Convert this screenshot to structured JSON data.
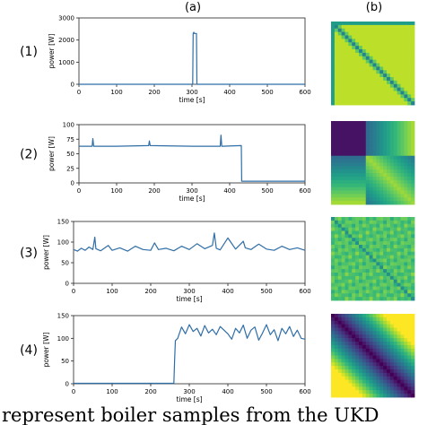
{
  "column_labels": [
    "(a)",
    "(b)"
  ],
  "caption": "represent boiler samples from the UKD",
  "colors": {
    "line": "#2f6ea6",
    "axis": "#222222"
  },
  "chart_data": [
    {
      "type": "line",
      "row_label": "(1)",
      "xlabel": "time [s]",
      "ylabel": "power [W]",
      "xlim": [
        0,
        600
      ],
      "ylim": [
        0,
        3000
      ],
      "xticks": [
        0,
        100,
        200,
        300,
        400,
        500,
        600
      ],
      "yticks": [
        0,
        1000,
        2000,
        3000
      ],
      "x": [
        0,
        298,
        299,
        302,
        303,
        305,
        306,
        312,
        313,
        314,
        600
      ],
      "y": [
        0,
        0,
        0,
        0,
        2300,
        2350,
        2300,
        2300,
        0,
        0,
        0
      ]
    },
    {
      "type": "line",
      "row_label": "(2)",
      "xlabel": "time [s]",
      "ylabel": "power [W]",
      "xlim": [
        0,
        600
      ],
      "ylim": [
        0,
        100
      ],
      "xticks": [
        0,
        100,
        200,
        300,
        400,
        500,
        600
      ],
      "yticks": [
        0,
        25,
        50,
        75,
        100
      ],
      "x": [
        0,
        35,
        37,
        39,
        100,
        185,
        187,
        189,
        300,
        375,
        377,
        379,
        430,
        431,
        432,
        433,
        600
      ],
      "y": [
        63,
        63,
        76,
        63,
        63,
        64,
        72,
        64,
        63,
        63,
        82,
        63,
        64,
        64,
        3,
        3,
        3
      ]
    },
    {
      "type": "line",
      "row_label": "(3)",
      "xlabel": "time [s]",
      "ylabel": "power [W]",
      "xlim": [
        0,
        600
      ],
      "ylim": [
        0,
        150
      ],
      "xticks": [
        0,
        100,
        200,
        300,
        400,
        500,
        600
      ],
      "yticks": [
        0,
        50,
        100,
        150
      ],
      "x": [
        0,
        10,
        20,
        30,
        40,
        50,
        55,
        58,
        70,
        90,
        100,
        120,
        140,
        160,
        180,
        200,
        210,
        220,
        240,
        260,
        280,
        300,
        320,
        340,
        360,
        365,
        370,
        380,
        400,
        420,
        440,
        445,
        460,
        480,
        500,
        520,
        540,
        560,
        580,
        600
      ],
      "y": [
        82,
        78,
        85,
        80,
        88,
        82,
        112,
        84,
        79,
        92,
        80,
        86,
        78,
        90,
        82,
        80,
        98,
        82,
        85,
        79,
        90,
        82,
        96,
        84,
        92,
        122,
        85,
        81,
        110,
        83,
        102,
        86,
        82,
        95,
        83,
        80,
        90,
        82,
        86,
        80
      ]
    },
    {
      "type": "line",
      "row_label": "(4)",
      "xlabel": "time [s]",
      "ylabel": "power [W]",
      "xlim": [
        0,
        600
      ],
      "ylim": [
        0,
        150
      ],
      "xticks": [
        0,
        100,
        200,
        300,
        400,
        500,
        600
      ],
      "yticks": [
        0,
        50,
        100,
        150
      ],
      "x": [
        0,
        260,
        262,
        264,
        270,
        280,
        290,
        300,
        310,
        320,
        330,
        340,
        350,
        360,
        370,
        380,
        390,
        400,
        410,
        420,
        430,
        440,
        450,
        460,
        470,
        480,
        490,
        500,
        510,
        520,
        530,
        540,
        550,
        560,
        570,
        580,
        590,
        600
      ],
      "y": [
        1,
        1,
        55,
        95,
        100,
        125,
        110,
        130,
        115,
        122,
        105,
        128,
        112,
        120,
        108,
        126,
        118,
        110,
        98,
        122,
        112,
        129,
        100,
        118,
        125,
        96,
        112,
        130,
        108,
        119,
        95,
        122,
        110,
        126,
        104,
        118,
        100,
        98
      ]
    },
    {
      "type": "heatmap",
      "row_label": "(1)",
      "pattern": "spike",
      "colormap": "viridis"
    },
    {
      "type": "heatmap",
      "row_label": "(2)",
      "pattern": "step",
      "colormap": "viridis"
    },
    {
      "type": "heatmap",
      "row_label": "(3)",
      "pattern": "noise",
      "colormap": "viridis"
    },
    {
      "type": "heatmap",
      "row_label": "(4)",
      "pattern": "ramp",
      "colormap": "viridis"
    }
  ]
}
